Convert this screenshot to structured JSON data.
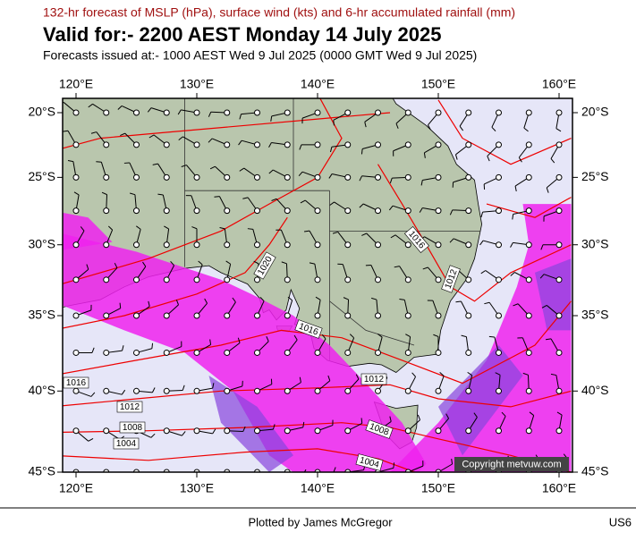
{
  "header": {
    "subtitle": "132-hr forecast of MSLP (hPa), surface wind (kts) and 6-hr accumulated rainfall (mm)",
    "title": "Valid for:- 2200 AEST Monday 14 July 2025",
    "issued": "Forecasts issued at:- 1000 AEST Wed 9 Jul 2025 (0000 GMT Wed 9 Jul 2025)"
  },
  "map": {
    "lon_ticks": [
      {
        "value": 120,
        "label": "120°E"
      },
      {
        "value": 130,
        "label": "130°E"
      },
      {
        "value": 140,
        "label": "140°E"
      },
      {
        "value": 150,
        "label": "150°E"
      },
      {
        "value": 160,
        "label": "160°E"
      }
    ],
    "lat_ticks": [
      {
        "value": -20,
        "label": "20°S"
      },
      {
        "value": -25,
        "label": "25°S"
      },
      {
        "value": -30,
        "label": "30°S"
      },
      {
        "value": -35,
        "label": "35°S"
      },
      {
        "value": -40,
        "label": "40°S"
      },
      {
        "value": -45,
        "label": "45°S"
      }
    ],
    "isobar_labels": [
      "1016",
      "1012",
      "1008",
      "1004",
      "1020",
      "1016",
      "1012",
      "1008",
      "1004",
      "1016",
      "1012"
    ],
    "copyright": "Copyright metvuw.com"
  },
  "footer": {
    "credit": "Plotted by James McGregor",
    "code": "US6"
  }
}
